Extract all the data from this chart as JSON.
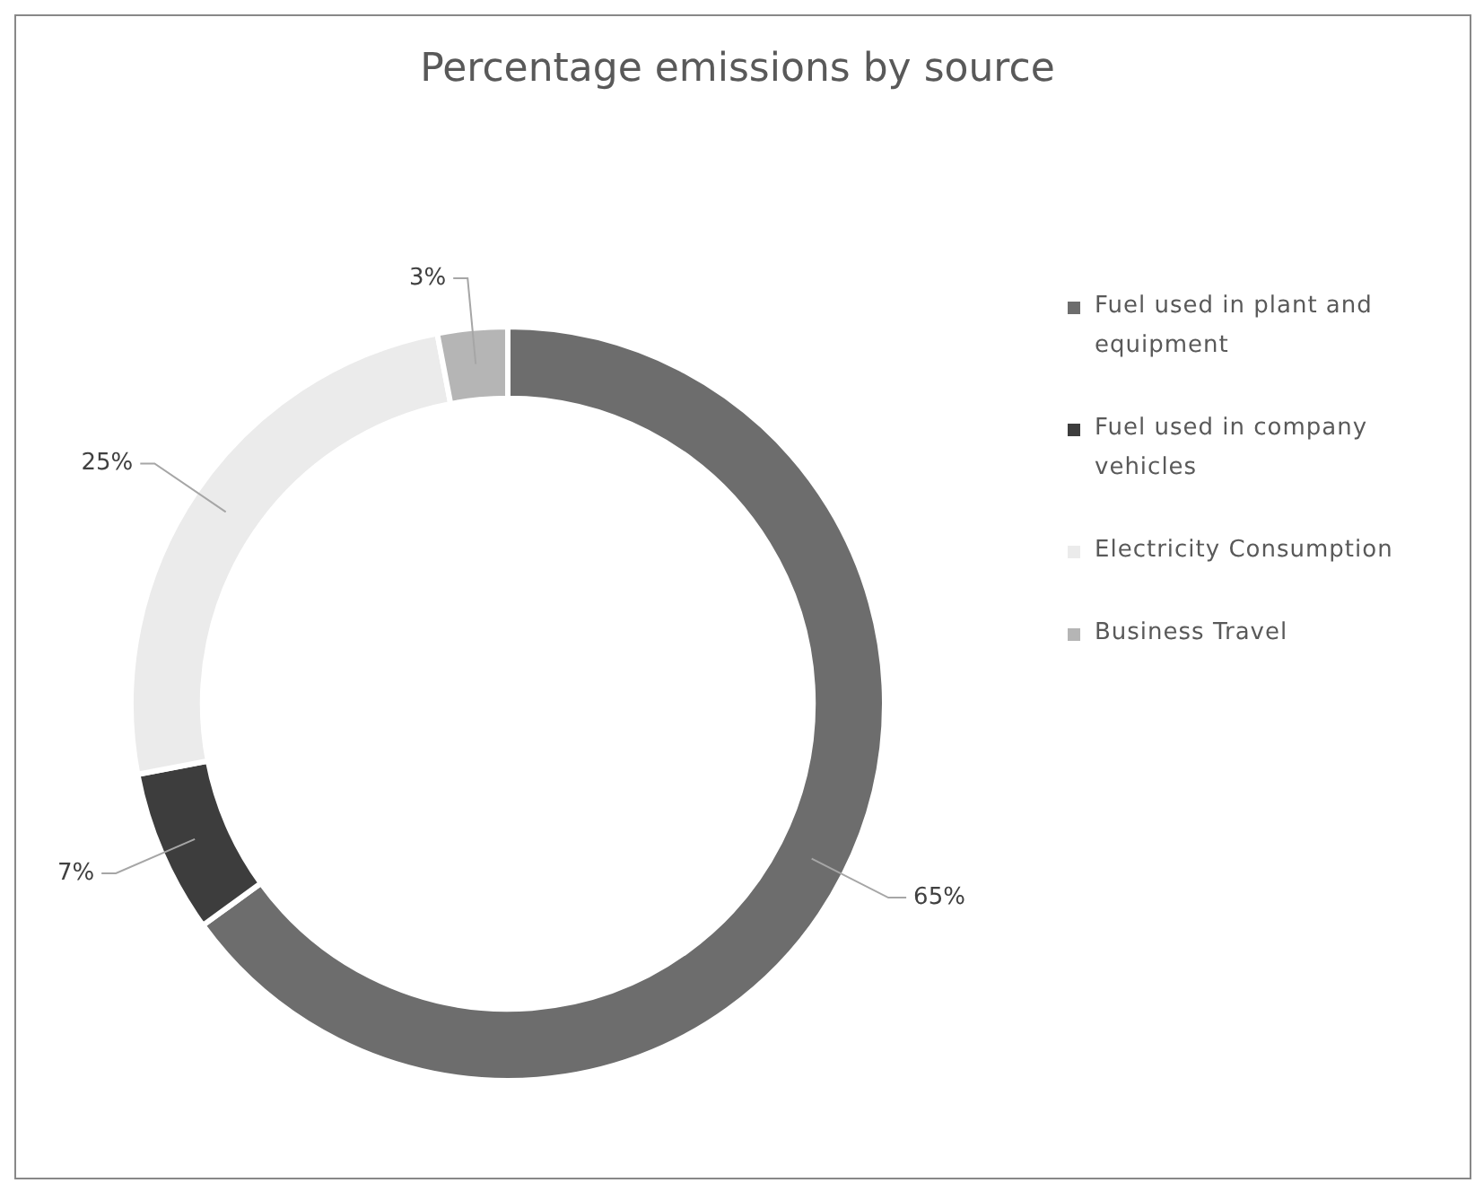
{
  "chart_data": {
    "type": "donut",
    "title": "Percentage emissions by source",
    "categories": [
      "Fuel used in plant and equipment",
      "Fuel used in company vehicles",
      "Electricity Consumption",
      "Business Travel"
    ],
    "values": [
      65,
      7,
      25,
      3
    ],
    "colors": [
      "#6d6d6d",
      "#3d3d3d",
      "#ebebeb",
      "#b5b5b5"
    ],
    "value_labels": [
      "65%",
      "7%",
      "25%",
      "3%"
    ],
    "legend": "right"
  }
}
